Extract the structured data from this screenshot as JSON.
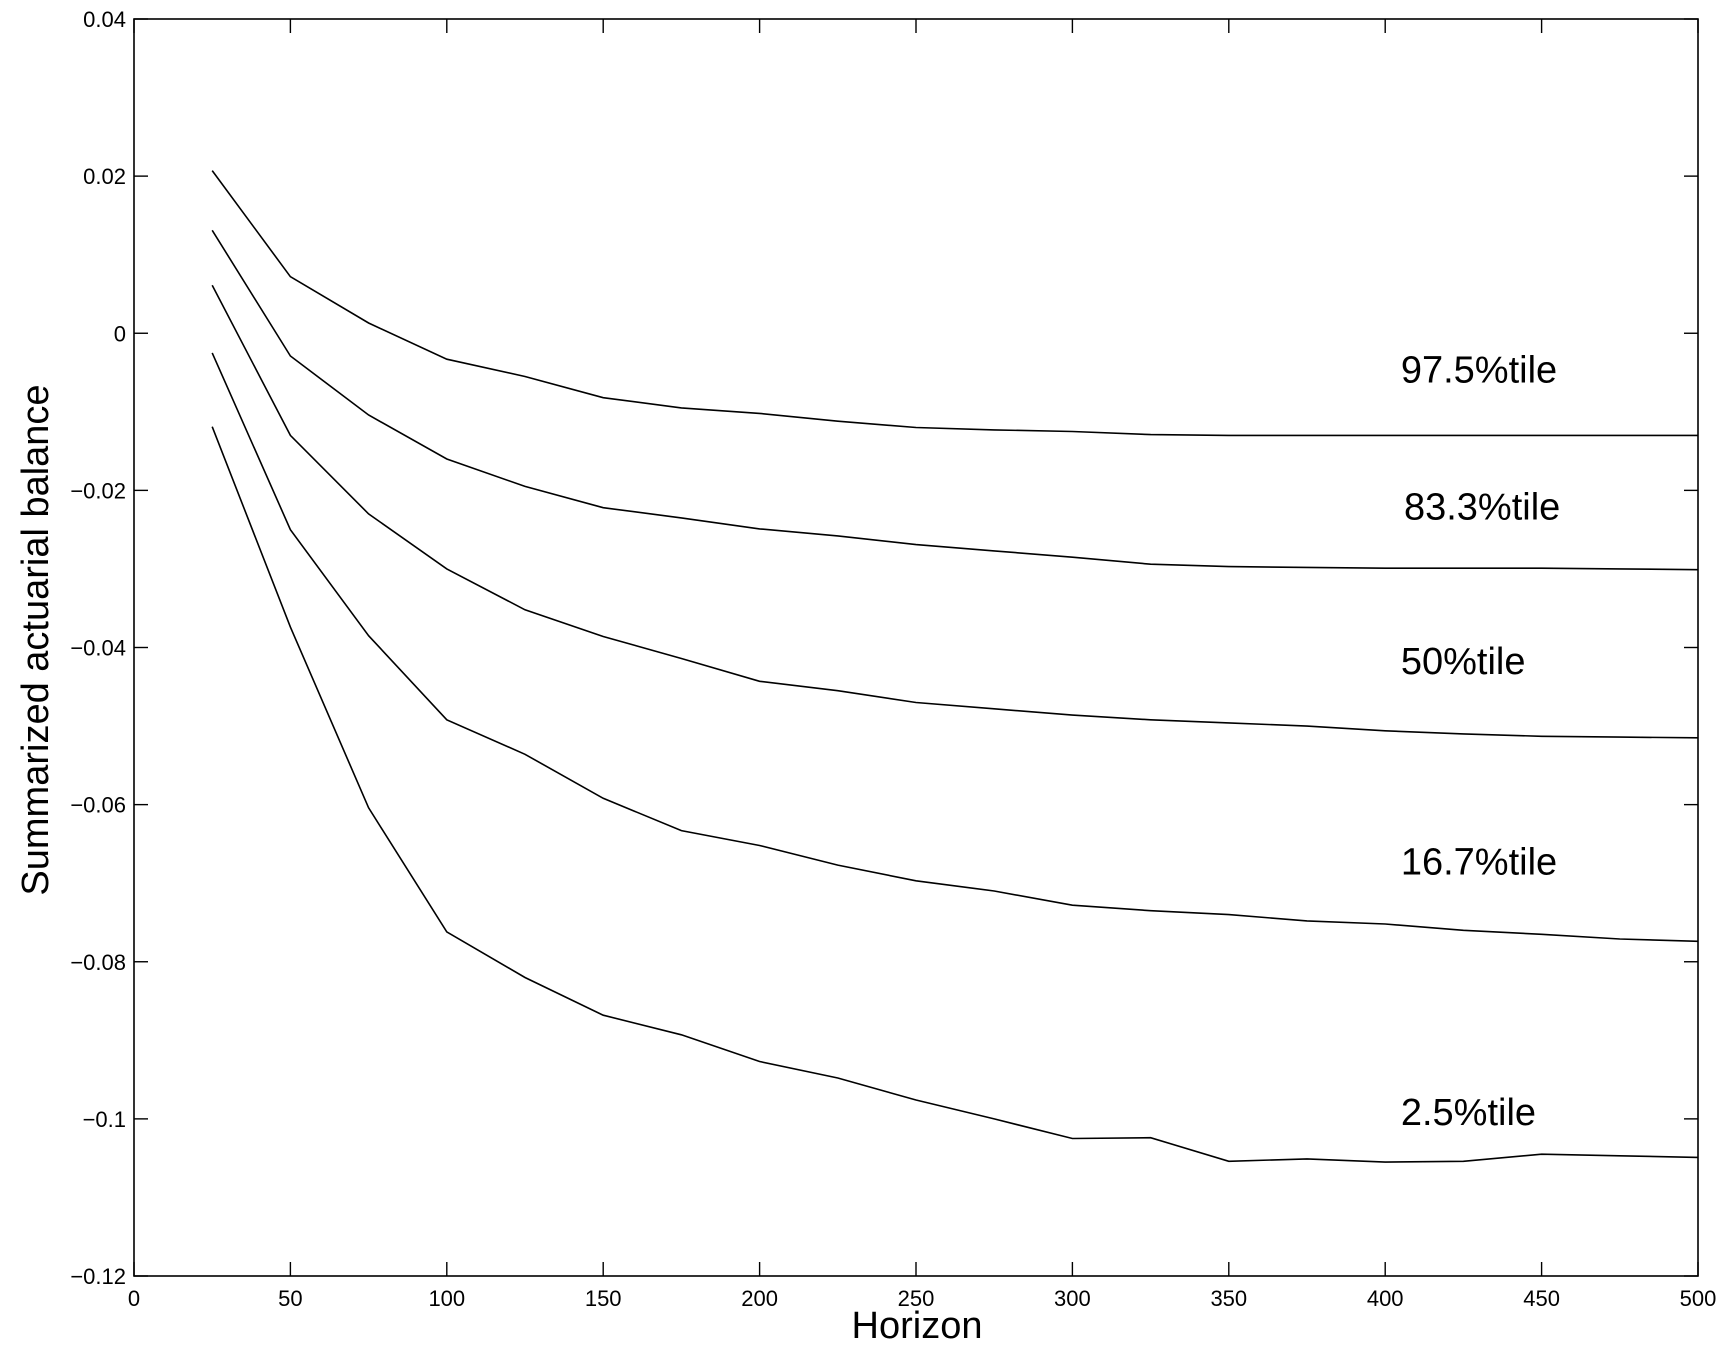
{
  "chart_data": {
    "type": "line",
    "title": "",
    "xlabel": "Horizon",
    "ylabel": "Summarized actuarial balance",
    "xlim": [
      0,
      500
    ],
    "ylim": [
      -0.12,
      0.04
    ],
    "x_ticks": [
      0,
      50,
      100,
      150,
      200,
      250,
      300,
      350,
      400,
      450,
      500
    ],
    "y_ticks": [
      0.04,
      0.02,
      0,
      -0.02,
      -0.04,
      -0.06,
      -0.08,
      -0.1,
      -0.12
    ],
    "y_tick_labels": [
      "0.04",
      "0.02",
      "0",
      "−0.02",
      "−0.04",
      "−0.06",
      "−0.08",
      "−0.1",
      "−0.12"
    ],
    "grid": false,
    "x": [
      25,
      50,
      75,
      100,
      125,
      150,
      175,
      200,
      225,
      250,
      275,
      300,
      325,
      350,
      375,
      400,
      425,
      450,
      475,
      500
    ],
    "series": [
      {
        "name": "97.5%tile",
        "label_x": 405,
        "label_y": -0.0063,
        "values": [
          0.0207,
          0.0072,
          0.0013,
          -0.0033,
          -0.0055,
          -0.0082,
          -0.0095,
          -0.0102,
          -0.0112,
          -0.012,
          -0.0123,
          -0.0125,
          -0.0129,
          -0.013,
          -0.013,
          -0.013,
          -0.013,
          -0.013,
          -0.013,
          -0.013
        ]
      },
      {
        "name": "83.3%tile",
        "label_x": 406,
        "label_y": -0.0237,
        "values": [
          0.0131,
          -0.0029,
          -0.0104,
          -0.016,
          -0.0195,
          -0.0222,
          -0.0235,
          -0.0249,
          -0.0258,
          -0.0269,
          -0.0277,
          -0.0285,
          -0.0294,
          -0.0297,
          -0.0298,
          -0.0299,
          -0.0299,
          -0.0299,
          -0.03,
          -0.0301
        ]
      },
      {
        "name": "50%tile",
        "label_x": 405,
        "label_y": -0.0434,
        "values": [
          0.0061,
          -0.013,
          -0.023,
          -0.03,
          -0.0352,
          -0.0386,
          -0.0414,
          -0.0443,
          -0.0455,
          -0.047,
          -0.0478,
          -0.0486,
          -0.0492,
          -0.0496,
          -0.05,
          -0.0506,
          -0.051,
          -0.0513,
          -0.0514,
          -0.0515
        ]
      },
      {
        "name": "16.7%tile",
        "label_x": 405,
        "label_y": -0.0689,
        "values": [
          -0.0025,
          -0.025,
          -0.0385,
          -0.0492,
          -0.0536,
          -0.0592,
          -0.0633,
          -0.0652,
          -0.0677,
          -0.0697,
          -0.071,
          -0.0728,
          -0.0735,
          -0.074,
          -0.0748,
          -0.0752,
          -0.076,
          -0.0765,
          -0.0771,
          -0.0774
        ]
      },
      {
        "name": "2.5%tile",
        "label_x": 405,
        "label_y": -0.1008,
        "values": [
          -0.0119,
          -0.0374,
          -0.0604,
          -0.0762,
          -0.082,
          -0.0868,
          -0.0893,
          -0.0927,
          -0.0948,
          -0.0976,
          -0.1,
          -0.1025,
          -0.1024,
          -0.1054,
          -0.1051,
          -0.1055,
          -0.1054,
          -0.1045,
          -0.1047,
          -0.1049
        ]
      }
    ]
  }
}
